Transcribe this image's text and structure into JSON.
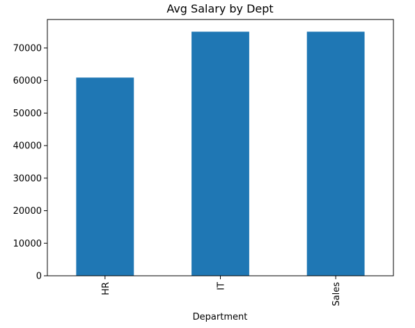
{
  "chart_data": {
    "type": "bar",
    "title": "Avg Salary by Dept",
    "xlabel": "Department",
    "ylabel": "",
    "categories": [
      "HR",
      "IT",
      "Sales"
    ],
    "values": [
      60900,
      75000,
      75000
    ],
    "ylim": [
      0,
      78750
    ],
    "yticks": [
      0,
      10000,
      20000,
      30000,
      40000,
      50000,
      60000,
      70000
    ],
    "ytick_labels": [
      "0",
      "10000",
      "20000",
      "30000",
      "40000",
      "50000",
      "60000",
      "70000"
    ],
    "grid": false,
    "legend": "none",
    "x_tick_rotation": "vertical",
    "bar_color": "#1f77b4"
  }
}
